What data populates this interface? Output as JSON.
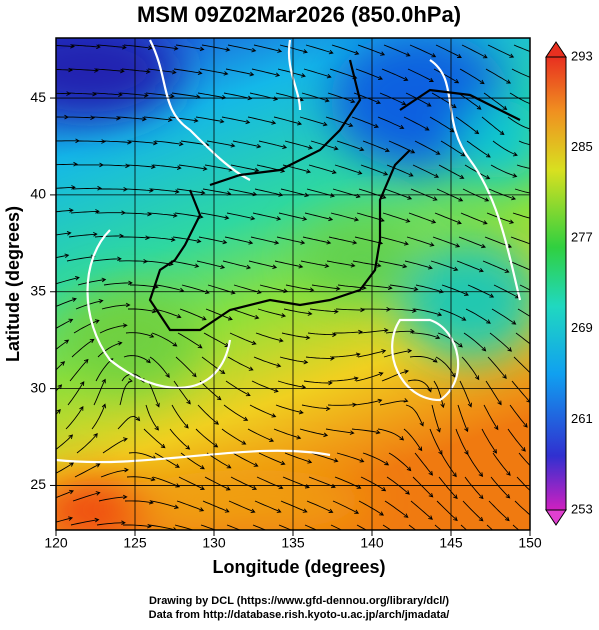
{
  "map": {
    "title": "MSM 09Z02Mar2026 (850.0hPa)",
    "xlabel": "Longitude (degrees)",
    "ylabel": "Latitude  (degrees)",
    "xlim": [
      120,
      150
    ],
    "ylim": [
      22.7,
      48.1
    ],
    "xticks": [
      120,
      125,
      130,
      135,
      140,
      145,
      150
    ],
    "yticks": [
      25,
      30,
      35,
      40,
      45
    ],
    "grid": true,
    "colorbar": {
      "lim": [
        253,
        293
      ],
      "ticks": [
        253,
        261,
        269,
        277,
        285,
        293
      ]
    },
    "footer": [
      "Drawing by DCL (https://www.gfd-dennou.org/library/dcl/)",
      "Data from http://database.rish.kyoto-u.ac.jp/arch/jmadata/"
    ]
  }
}
